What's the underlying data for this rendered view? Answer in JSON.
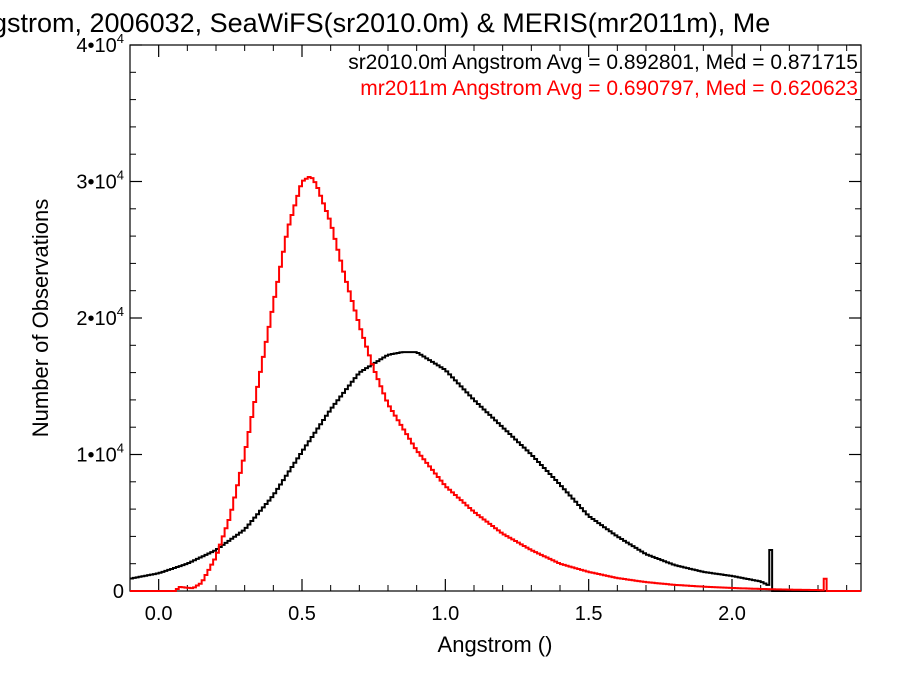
{
  "chart_data": {
    "type": "line",
    "title": "gstrom, 2006032, SeaWiFS(sr2010.0m) & MERIS(mr2011m), Me",
    "xlabel": "Angstrom ()",
    "ylabel": "Number of Observations",
    "xlim": [
      -0.1,
      2.45
    ],
    "ylim": [
      0,
      40000
    ],
    "x_ticks": [
      {
        "value": 0.0,
        "label": "0.0"
      },
      {
        "value": 0.5,
        "label": "0.5"
      },
      {
        "value": 1.0,
        "label": "1.0"
      },
      {
        "value": 1.5,
        "label": "1.5"
      },
      {
        "value": 2.0,
        "label": "2.0"
      }
    ],
    "y_ticks": [
      {
        "value": 0,
        "base": "0",
        "exp": ""
      },
      {
        "value": 10000,
        "base": "1•10",
        "exp": "4"
      },
      {
        "value": 20000,
        "base": "2•10",
        "exp": "4"
      },
      {
        "value": 30000,
        "base": "3•10",
        "exp": "4"
      },
      {
        "value": 40000,
        "base": "4•10",
        "exp": "4"
      }
    ],
    "legend": [
      {
        "text": "sr2010.0m Angstrom Avg = 0.892801, Med = 0.871715",
        "color": "#000000"
      },
      {
        "text": "mr2011m Angstrom Avg = 0.690797, Med = 0.620623",
        "color": "#ff0000"
      }
    ],
    "legend_position": "top-right",
    "step_style": "histogram",
    "series": [
      {
        "color": "#000000",
        "points": [
          [
            -0.1,
            900
          ],
          [
            0.0,
            1300
          ],
          [
            0.1,
            2000
          ],
          [
            0.2,
            3000
          ],
          [
            0.3,
            4500
          ],
          [
            0.4,
            7000
          ],
          [
            0.5,
            10200
          ],
          [
            0.6,
            13300
          ],
          [
            0.7,
            16000
          ],
          [
            0.8,
            17300
          ],
          [
            0.85,
            17500
          ],
          [
            0.9,
            17500
          ],
          [
            1.0,
            16200
          ],
          [
            1.1,
            14000
          ],
          [
            1.2,
            12000
          ],
          [
            1.3,
            10000
          ],
          [
            1.4,
            7800
          ],
          [
            1.5,
            5500
          ],
          [
            1.6,
            4000
          ],
          [
            1.7,
            2700
          ],
          [
            1.8,
            1900
          ],
          [
            1.9,
            1400
          ],
          [
            2.0,
            1100
          ],
          [
            2.1,
            700
          ],
          [
            2.13,
            400
          ],
          [
            2.135,
            3000
          ],
          [
            2.14,
            0
          ],
          [
            2.45,
            0
          ]
        ]
      },
      {
        "color": "#ff0000",
        "points": [
          [
            -0.1,
            0
          ],
          [
            0.06,
            0
          ],
          [
            0.07,
            300
          ],
          [
            0.12,
            200
          ],
          [
            0.15,
            600
          ],
          [
            0.2,
            2500
          ],
          [
            0.25,
            5500
          ],
          [
            0.3,
            10000
          ],
          [
            0.35,
            15500
          ],
          [
            0.4,
            21000
          ],
          [
            0.45,
            26500
          ],
          [
            0.5,
            30000
          ],
          [
            0.53,
            30400
          ],
          [
            0.55,
            29800
          ],
          [
            0.6,
            27000
          ],
          [
            0.65,
            23000
          ],
          [
            0.7,
            19500
          ],
          [
            0.75,
            16300
          ],
          [
            0.8,
            13700
          ],
          [
            0.9,
            10300
          ],
          [
            1.0,
            7700
          ],
          [
            1.1,
            5800
          ],
          [
            1.2,
            4200
          ],
          [
            1.3,
            3000
          ],
          [
            1.4,
            2000
          ],
          [
            1.5,
            1400
          ],
          [
            1.6,
            950
          ],
          [
            1.7,
            650
          ],
          [
            1.8,
            450
          ],
          [
            1.9,
            320
          ],
          [
            2.0,
            220
          ],
          [
            2.1,
            150
          ],
          [
            2.2,
            100
          ],
          [
            2.3,
            70
          ],
          [
            2.32,
            40
          ],
          [
            2.325,
            900
          ],
          [
            2.33,
            0
          ],
          [
            2.45,
            0
          ]
        ]
      }
    ]
  }
}
